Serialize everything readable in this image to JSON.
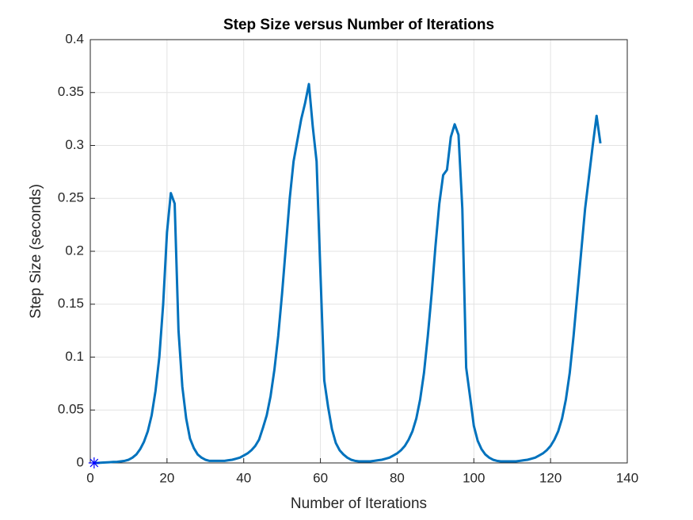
{
  "chart_data": {
    "type": "line",
    "title": "Step Size versus Number of Iterations",
    "xlabel": "Number of Iterations",
    "ylabel": "Step Size (seconds)",
    "xlim": [
      0,
      140
    ],
    "xticks": [
      0,
      20,
      40,
      60,
      80,
      100,
      120,
      140
    ],
    "ylim": [
      0,
      0.4
    ],
    "yticks": [
      0,
      0.05,
      0.1,
      0.15,
      0.2,
      0.25,
      0.3,
      0.35,
      0.4
    ],
    "grid": true,
    "series": [
      {
        "color": "#0072bd",
        "x": [
          1,
          2,
          3,
          4,
          5,
          6,
          7,
          8,
          9,
          10,
          11,
          12,
          13,
          14,
          15,
          16,
          17,
          18,
          19,
          20,
          21,
          22,
          23,
          24,
          25,
          26,
          27,
          28,
          29,
          30,
          31,
          32,
          33,
          34,
          35,
          36,
          37,
          38,
          39,
          40,
          41,
          42,
          43,
          44,
          45,
          46,
          47,
          48,
          49,
          50,
          51,
          52,
          53,
          54,
          55,
          56,
          57,
          58,
          59,
          60,
          61,
          62,
          63,
          64,
          65,
          66,
          67,
          68,
          69,
          70,
          71,
          72,
          73,
          74,
          75,
          76,
          77,
          78,
          79,
          80,
          81,
          82,
          83,
          84,
          85,
          86,
          87,
          88,
          89,
          90,
          91,
          92,
          93,
          94,
          95,
          96,
          97,
          98,
          99,
          100,
          101,
          102,
          103,
          104,
          105,
          106,
          107,
          108,
          109,
          110,
          111,
          112,
          113,
          114,
          115,
          116,
          117,
          118,
          119,
          120,
          121,
          122,
          123,
          124,
          125,
          126,
          127,
          128,
          129,
          130,
          131,
          132,
          133
        ],
        "values": [
          0,
          0,
          0.0003,
          0.0005,
          0.0007,
          0.0009,
          0.001,
          0.0015,
          0.002,
          0.003,
          0.005,
          0.008,
          0.013,
          0.02,
          0.03,
          0.045,
          0.068,
          0.1,
          0.15,
          0.218,
          0.255,
          0.245,
          0.125,
          0.072,
          0.042,
          0.023,
          0.014,
          0.008,
          0.005,
          0.003,
          0.002,
          0.002,
          0.002,
          0.002,
          0.002,
          0.0025,
          0.003,
          0.004,
          0.005,
          0.007,
          0.009,
          0.012,
          0.016,
          0.022,
          0.033,
          0.045,
          0.063,
          0.088,
          0.12,
          0.16,
          0.205,
          0.25,
          0.285,
          0.305,
          0.325,
          0.34,
          0.358,
          0.318,
          0.285,
          0.18,
          0.078,
          0.053,
          0.032,
          0.019,
          0.012,
          0.008,
          0.005,
          0.003,
          0.002,
          0.0015,
          0.0015,
          0.0015,
          0.0015,
          0.002,
          0.0025,
          0.003,
          0.004,
          0.005,
          0.007,
          0.009,
          0.012,
          0.016,
          0.022,
          0.03,
          0.042,
          0.06,
          0.085,
          0.12,
          0.16,
          0.205,
          0.245,
          0.272,
          0.277,
          0.308,
          0.32,
          0.31,
          0.24,
          0.09,
          0.063,
          0.035,
          0.021,
          0.013,
          0.008,
          0.005,
          0.003,
          0.002,
          0.0015,
          0.0015,
          0.0015,
          0.0015,
          0.0015,
          0.002,
          0.0025,
          0.003,
          0.004,
          0.005,
          0.007,
          0.009,
          0.012,
          0.016,
          0.022,
          0.03,
          0.042,
          0.06,
          0.085,
          0.12,
          0.16,
          0.2,
          0.24,
          0.27,
          0.3,
          0.328,
          0.302
        ]
      },
      {
        "color": "#0000ff",
        "marker": "*",
        "x": [
          1
        ],
        "values": [
          0
        ]
      }
    ]
  }
}
